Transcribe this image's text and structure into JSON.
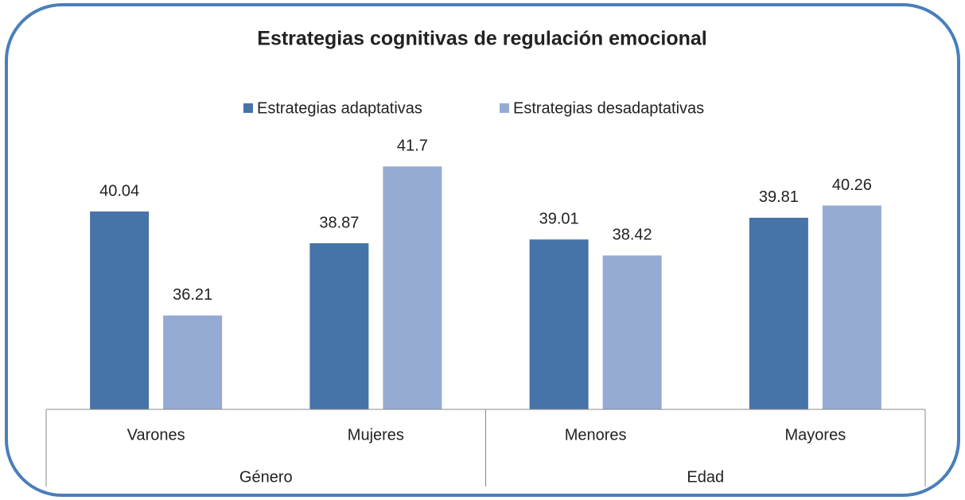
{
  "chart_data": {
    "type": "bar",
    "title": "Estrategias cognitivas de regulación emocional",
    "groups": [
      {
        "name": "Género",
        "categories": [
          "Varones",
          "Mujeres"
        ]
      },
      {
        "name": "Edad",
        "categories": [
          "Menores",
          "Mayores"
        ]
      }
    ],
    "series": [
      {
        "name": "Estrategias adaptativas",
        "color": "#4673a8",
        "values": [
          40.04,
          38.87,
          39.01,
          39.81
        ]
      },
      {
        "name": "Estrategias desadaptativas",
        "color": "#95abd3",
        "values": [
          36.21,
          41.7,
          38.42,
          40.26
        ]
      }
    ],
    "ylim": [
      32.75,
      43
    ],
    "legend": "top"
  }
}
